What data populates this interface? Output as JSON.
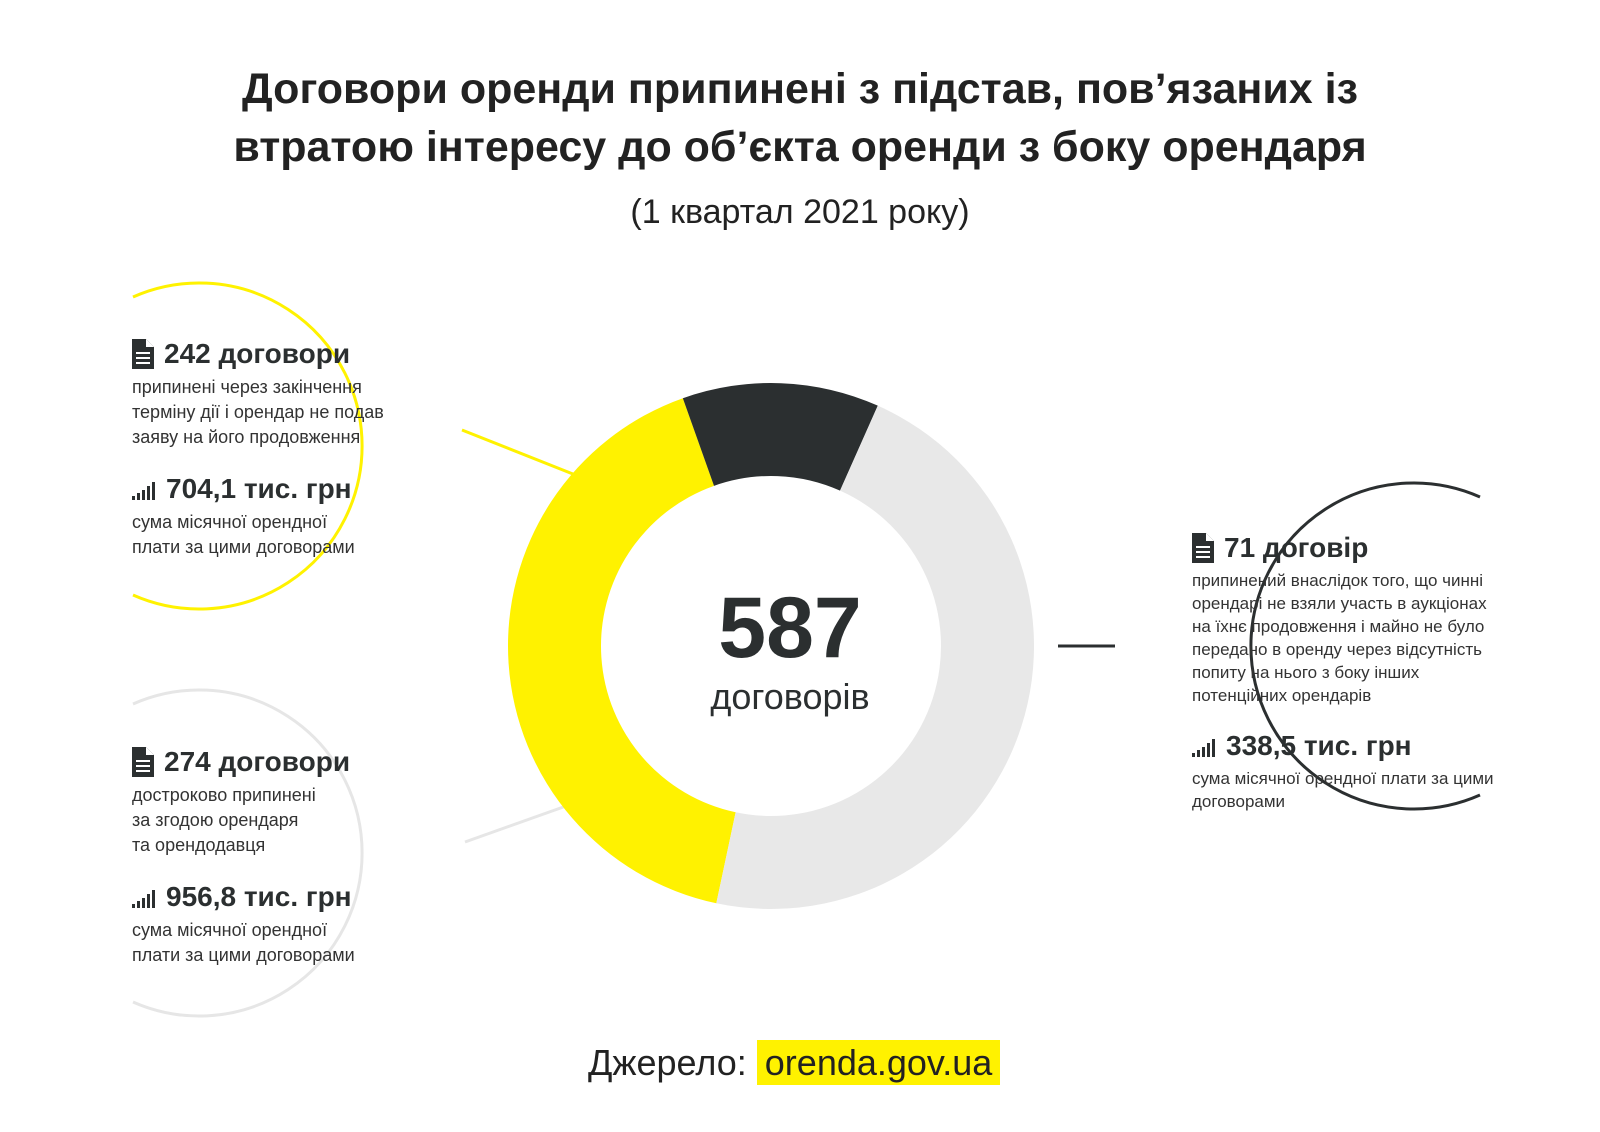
{
  "title_line1": "Договори оренди припинені з підстав, пов’язаних із",
  "title_line2": "втратою інтересу до об’єкта оренди з боку орендаря",
  "subtitle": "(1 квартал 2021 року)",
  "total": {
    "value": "587",
    "unit": "договорів"
  },
  "items": [
    {
      "count": "242 договори",
      "desc": [
        "припинені через закінчення",
        "терміну дії і орендар не подав",
        "заяву на його продовження"
      ],
      "amount": "704,1 тис. грн",
      "amount_desc": [
        "сума місячної орендної",
        "плати за цими договорами"
      ]
    },
    {
      "count": "274 договори",
      "desc": [
        "достроково припинені",
        "за згодою орендаря",
        "та орендодавця"
      ],
      "amount": "956,8 тис. грн",
      "amount_desc": [
        "сума місячної орендної",
        "плати за цими договорами"
      ]
    },
    {
      "count": "71 договір",
      "desc": [
        "припинений внаслідок того, що чинні",
        "орендарі не взяли участь в аукціонах",
        "на їхнє продовження і майно не було",
        "передано в оренду через відсутність",
        "попиту на нього з боку інших",
        "потенційних орендарів"
      ],
      "amount": "338,5 тис. грн",
      "amount_desc": [
        "сума місячної орендної плати за цими",
        "договорами"
      ]
    }
  ],
  "source_label": "Джерело:",
  "source_link": "orenda.gov.ua",
  "chart_data": {
    "type": "pie",
    "categories": [
      "242 договори",
      "71 договір",
      "274 договори"
    ],
    "values": [
      242,
      71,
      274
    ],
    "colors": [
      "#fff200",
      "#2b2f30",
      "#e8e8e8"
    ],
    "total": 587
  },
  "colors": {
    "accent": "#fff200",
    "dark": "#2b2f30",
    "light": "#e8e8e8"
  },
  "icons": {
    "document": "document-icon",
    "bars": "signal-bars-icon"
  }
}
